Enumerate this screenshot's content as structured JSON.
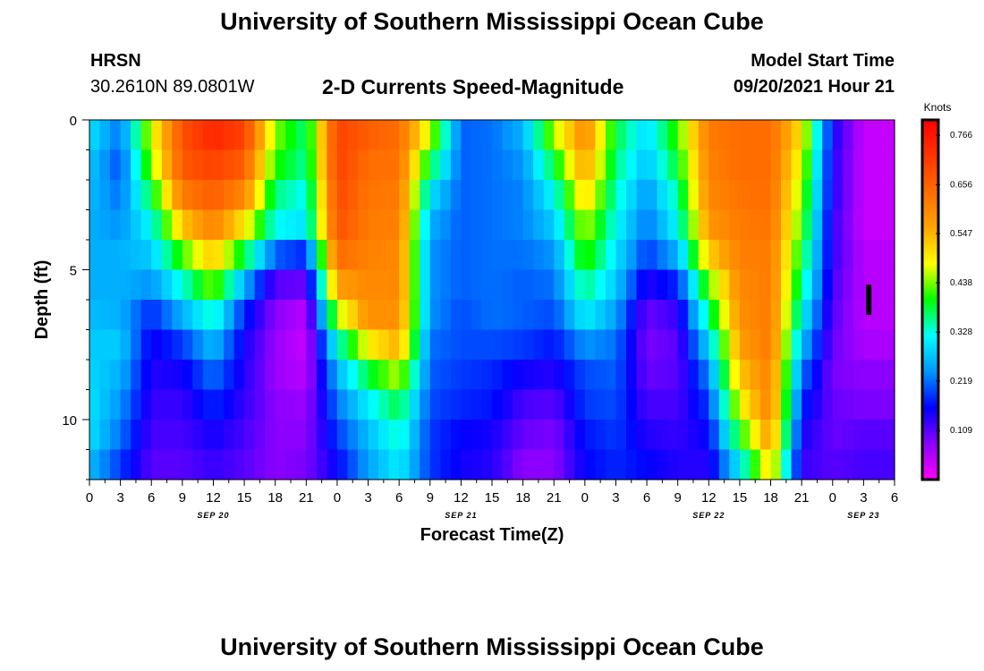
{
  "header": {
    "title": "University of Southern Mississippi Ocean Cube",
    "station_name": "HRSN",
    "station_coords": "30.2610N  89.0801W",
    "subtitle": "2-D Currents Speed-Magnitude",
    "model_start_label": "Model Start Time",
    "model_start_value": "09/20/2021 Hour 21"
  },
  "footer": {
    "title": "University of Southern Mississippi Ocean Cube"
  },
  "chart_data": {
    "type": "heatmap",
    "title": "2-D Currents Speed-Magnitude",
    "xlabel": "Forecast Time(Z)",
    "ylabel": "Depth (ft)",
    "x_hours_range": [
      0,
      78
    ],
    "x_step_hours": 3,
    "x_tick_labels": [
      "0",
      "3",
      "6",
      "9",
      "12",
      "15",
      "18",
      "21",
      "0",
      "3",
      "6",
      "9",
      "12",
      "15",
      "18",
      "21",
      "0",
      "3",
      "6",
      "9",
      "12",
      "15",
      "18",
      "21",
      "0",
      "3",
      "6"
    ],
    "date_labels": [
      {
        "text": "SEP 20",
        "hour": 12
      },
      {
        "text": "SEP 21",
        "hour": 36
      },
      {
        "text": "SEP 22",
        "hour": 60
      },
      {
        "text": "SEP 23",
        "hour": 75
      }
    ],
    "y_range_ft": [
      0,
      12
    ],
    "y_tick_labels": [
      "0",
      "5",
      "10"
    ],
    "y_tick_values": [
      0,
      5,
      10
    ],
    "y_minor_step": 1,
    "depth_rows_ft": [
      0.5,
      1.5,
      2.5,
      3.5,
      4.5,
      5.5,
      6.5,
      7.5,
      8.5,
      9.5,
      10.5,
      11.5
    ],
    "colorbar": {
      "units": "Knots",
      "tick_labels": [
        "0.766",
        "0.656",
        "0.547",
        "0.438",
        "0.328",
        "0.219",
        "0.109"
      ],
      "tick_values": [
        0.766,
        0.656,
        0.547,
        0.438,
        0.328,
        0.219,
        0.109
      ],
      "range": [
        0.0,
        0.8
      ]
    },
    "current_time_marker": {
      "hour": 75.5,
      "depth_ft_range": [
        5.5,
        6.5
      ]
    },
    "series": [
      {
        "hour": 0,
        "values": [
          0.3,
          0.28,
          0.27,
          0.26,
          0.26,
          0.26,
          0.27,
          0.28,
          0.29,
          0.3,
          0.3,
          0.27
        ]
      },
      {
        "hour": 3,
        "values": [
          0.22,
          0.2,
          0.22,
          0.24,
          0.26,
          0.26,
          0.26,
          0.28,
          0.26,
          0.24,
          0.22,
          0.19
        ]
      },
      {
        "hour": 6,
        "values": [
          0.47,
          0.44,
          0.38,
          0.32,
          0.28,
          0.24,
          0.18,
          0.15,
          0.14,
          0.13,
          0.12,
          0.11
        ]
      },
      {
        "hour": 9,
        "values": [
          0.68,
          0.67,
          0.62,
          0.53,
          0.42,
          0.33,
          0.26,
          0.19,
          0.15,
          0.13,
          0.12,
          0.11
        ]
      },
      {
        "hour": 12,
        "values": [
          0.74,
          0.7,
          0.66,
          0.61,
          0.53,
          0.44,
          0.34,
          0.27,
          0.22,
          0.18,
          0.15,
          0.13
        ]
      },
      {
        "hour": 15,
        "values": [
          0.7,
          0.66,
          0.6,
          0.5,
          0.38,
          0.26,
          0.18,
          0.15,
          0.14,
          0.13,
          0.12,
          0.11
        ]
      },
      {
        "hour": 18,
        "values": [
          0.44,
          0.41,
          0.36,
          0.32,
          0.21,
          0.11,
          0.08,
          0.07,
          0.07,
          0.08,
          0.08,
          0.08
        ]
      },
      {
        "hour": 21,
        "values": [
          0.36,
          0.35,
          0.32,
          0.3,
          0.18,
          0.1,
          0.05,
          0.04,
          0.05,
          0.07,
          0.08,
          0.09
        ]
      },
      {
        "hour": 24,
        "values": [
          0.7,
          0.7,
          0.69,
          0.68,
          0.64,
          0.57,
          0.45,
          0.33,
          0.26,
          0.22,
          0.19,
          0.16
        ]
      },
      {
        "hour": 27,
        "values": [
          0.66,
          0.64,
          0.63,
          0.62,
          0.61,
          0.6,
          0.59,
          0.49,
          0.38,
          0.31,
          0.27,
          0.25
        ]
      },
      {
        "hour": 30,
        "values": [
          0.64,
          0.63,
          0.62,
          0.61,
          0.6,
          0.6,
          0.59,
          0.55,
          0.46,
          0.38,
          0.34,
          0.31
        ]
      },
      {
        "hour": 33,
        "values": [
          0.46,
          0.38,
          0.3,
          0.26,
          0.24,
          0.24,
          0.24,
          0.22,
          0.21,
          0.2,
          0.19,
          0.19
        ]
      },
      {
        "hour": 36,
        "values": [
          0.21,
          0.21,
          0.21,
          0.21,
          0.21,
          0.21,
          0.2,
          0.2,
          0.19,
          0.18,
          0.16,
          0.15
        ]
      },
      {
        "hour": 39,
        "values": [
          0.22,
          0.22,
          0.22,
          0.22,
          0.22,
          0.22,
          0.22,
          0.2,
          0.18,
          0.17,
          0.15,
          0.14
        ]
      },
      {
        "hour": 42,
        "values": [
          0.26,
          0.24,
          0.23,
          0.23,
          0.22,
          0.21,
          0.21,
          0.19,
          0.15,
          0.12,
          0.1,
          0.08
        ]
      },
      {
        "hour": 45,
        "values": [
          0.45,
          0.38,
          0.32,
          0.28,
          0.24,
          0.22,
          0.2,
          0.17,
          0.14,
          0.11,
          0.09,
          0.08
        ]
      },
      {
        "hour": 48,
        "values": [
          0.6,
          0.57,
          0.52,
          0.46,
          0.42,
          0.36,
          0.31,
          0.24,
          0.2,
          0.19,
          0.17,
          0.16
        ]
      },
      {
        "hour": 51,
        "values": [
          0.38,
          0.36,
          0.34,
          0.32,
          0.3,
          0.28,
          0.25,
          0.22,
          0.21,
          0.2,
          0.19,
          0.18
        ]
      },
      {
        "hour": 54,
        "values": [
          0.29,
          0.27,
          0.24,
          0.22,
          0.19,
          0.14,
          0.1,
          0.09,
          0.1,
          0.12,
          0.14,
          0.16
        ]
      },
      {
        "hour": 57,
        "values": [
          0.42,
          0.39,
          0.35,
          0.32,
          0.26,
          0.18,
          0.13,
          0.11,
          0.11,
          0.12,
          0.13,
          0.14
        ]
      },
      {
        "hour": 60,
        "values": [
          0.62,
          0.61,
          0.6,
          0.58,
          0.52,
          0.43,
          0.36,
          0.29,
          0.23,
          0.19,
          0.16,
          0.14
        ]
      },
      {
        "hour": 63,
        "values": [
          0.64,
          0.64,
          0.63,
          0.62,
          0.61,
          0.6,
          0.59,
          0.57,
          0.53,
          0.48,
          0.4,
          0.31
        ]
      },
      {
        "hour": 66,
        "values": [
          0.64,
          0.64,
          0.64,
          0.63,
          0.62,
          0.62,
          0.62,
          0.62,
          0.61,
          0.61,
          0.58,
          0.52
        ]
      },
      {
        "hour": 69,
        "values": [
          0.5,
          0.47,
          0.44,
          0.42,
          0.39,
          0.36,
          0.32,
          0.27,
          0.22,
          0.18,
          0.15,
          0.13
        ]
      },
      {
        "hour": 72,
        "values": [
          0.15,
          0.14,
          0.14,
          0.13,
          0.13,
          0.12,
          0.11,
          0.1,
          0.09,
          0.1,
          0.1,
          0.11
        ]
      },
      {
        "hour": 75,
        "values": [
          0.04,
          0.04,
          0.04,
          0.04,
          0.05,
          0.05,
          0.05,
          0.06,
          0.08,
          0.09,
          0.11,
          0.12
        ]
      },
      {
        "hour": 78,
        "values": [
          0.04,
          0.04,
          0.04,
          0.04,
          0.05,
          0.05,
          0.05,
          0.06,
          0.08,
          0.09,
          0.11,
          0.12
        ]
      }
    ]
  }
}
